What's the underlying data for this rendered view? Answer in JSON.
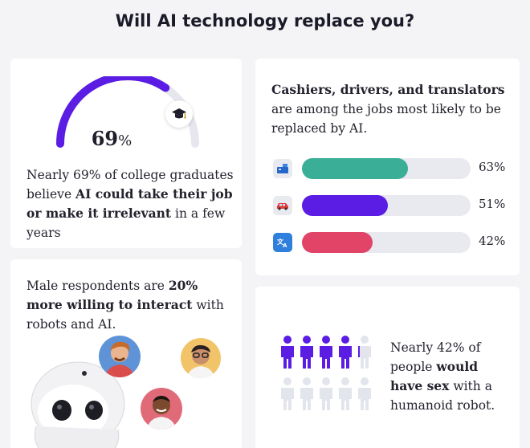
{
  "title": "Will AI technology replace you?",
  "card_graduates": {
    "gauge_value": "69",
    "gauge_unit": "%",
    "gauge_fraction": 0.69,
    "icon": "graduation-cap-icon",
    "text_part1": "Nearly 69% of college graduates believe ",
    "text_bold": "AI could take their job or make it irrelevant",
    "text_part2": " in a few years",
    "colors": {
      "gauge_fill": "#5b1de3",
      "gauge_track": "#e6e7ee"
    }
  },
  "card_jobs": {
    "text_bold": "Cashiers, drivers, and translators",
    "text_rest": " are among the jobs most likely to be replaced by AI.",
    "bars": [
      {
        "icon": "cash-register-icon",
        "value": 63,
        "label": "63%",
        "color": "#3aae97"
      },
      {
        "icon": "car-icon",
        "value": 51,
        "label": "51%",
        "color": "#5b1de3"
      },
      {
        "icon": "translate-icon",
        "value": 42,
        "label": "42%",
        "color": "#e24468"
      }
    ]
  },
  "card_male": {
    "text_part1": "Male respondents are ",
    "text_bold": "20% more willing to interact",
    "text_part2": " with robots and AI."
  },
  "card_robot_sex": {
    "text_part1": "Nearly 42% of people ",
    "text_bold": "would have sex",
    "text_part2": " with a humanoid robot.",
    "highlight_fraction": 0.42,
    "colors": {
      "highlight": "#5b1de3",
      "muted": "#e3e5ec"
    }
  }
}
